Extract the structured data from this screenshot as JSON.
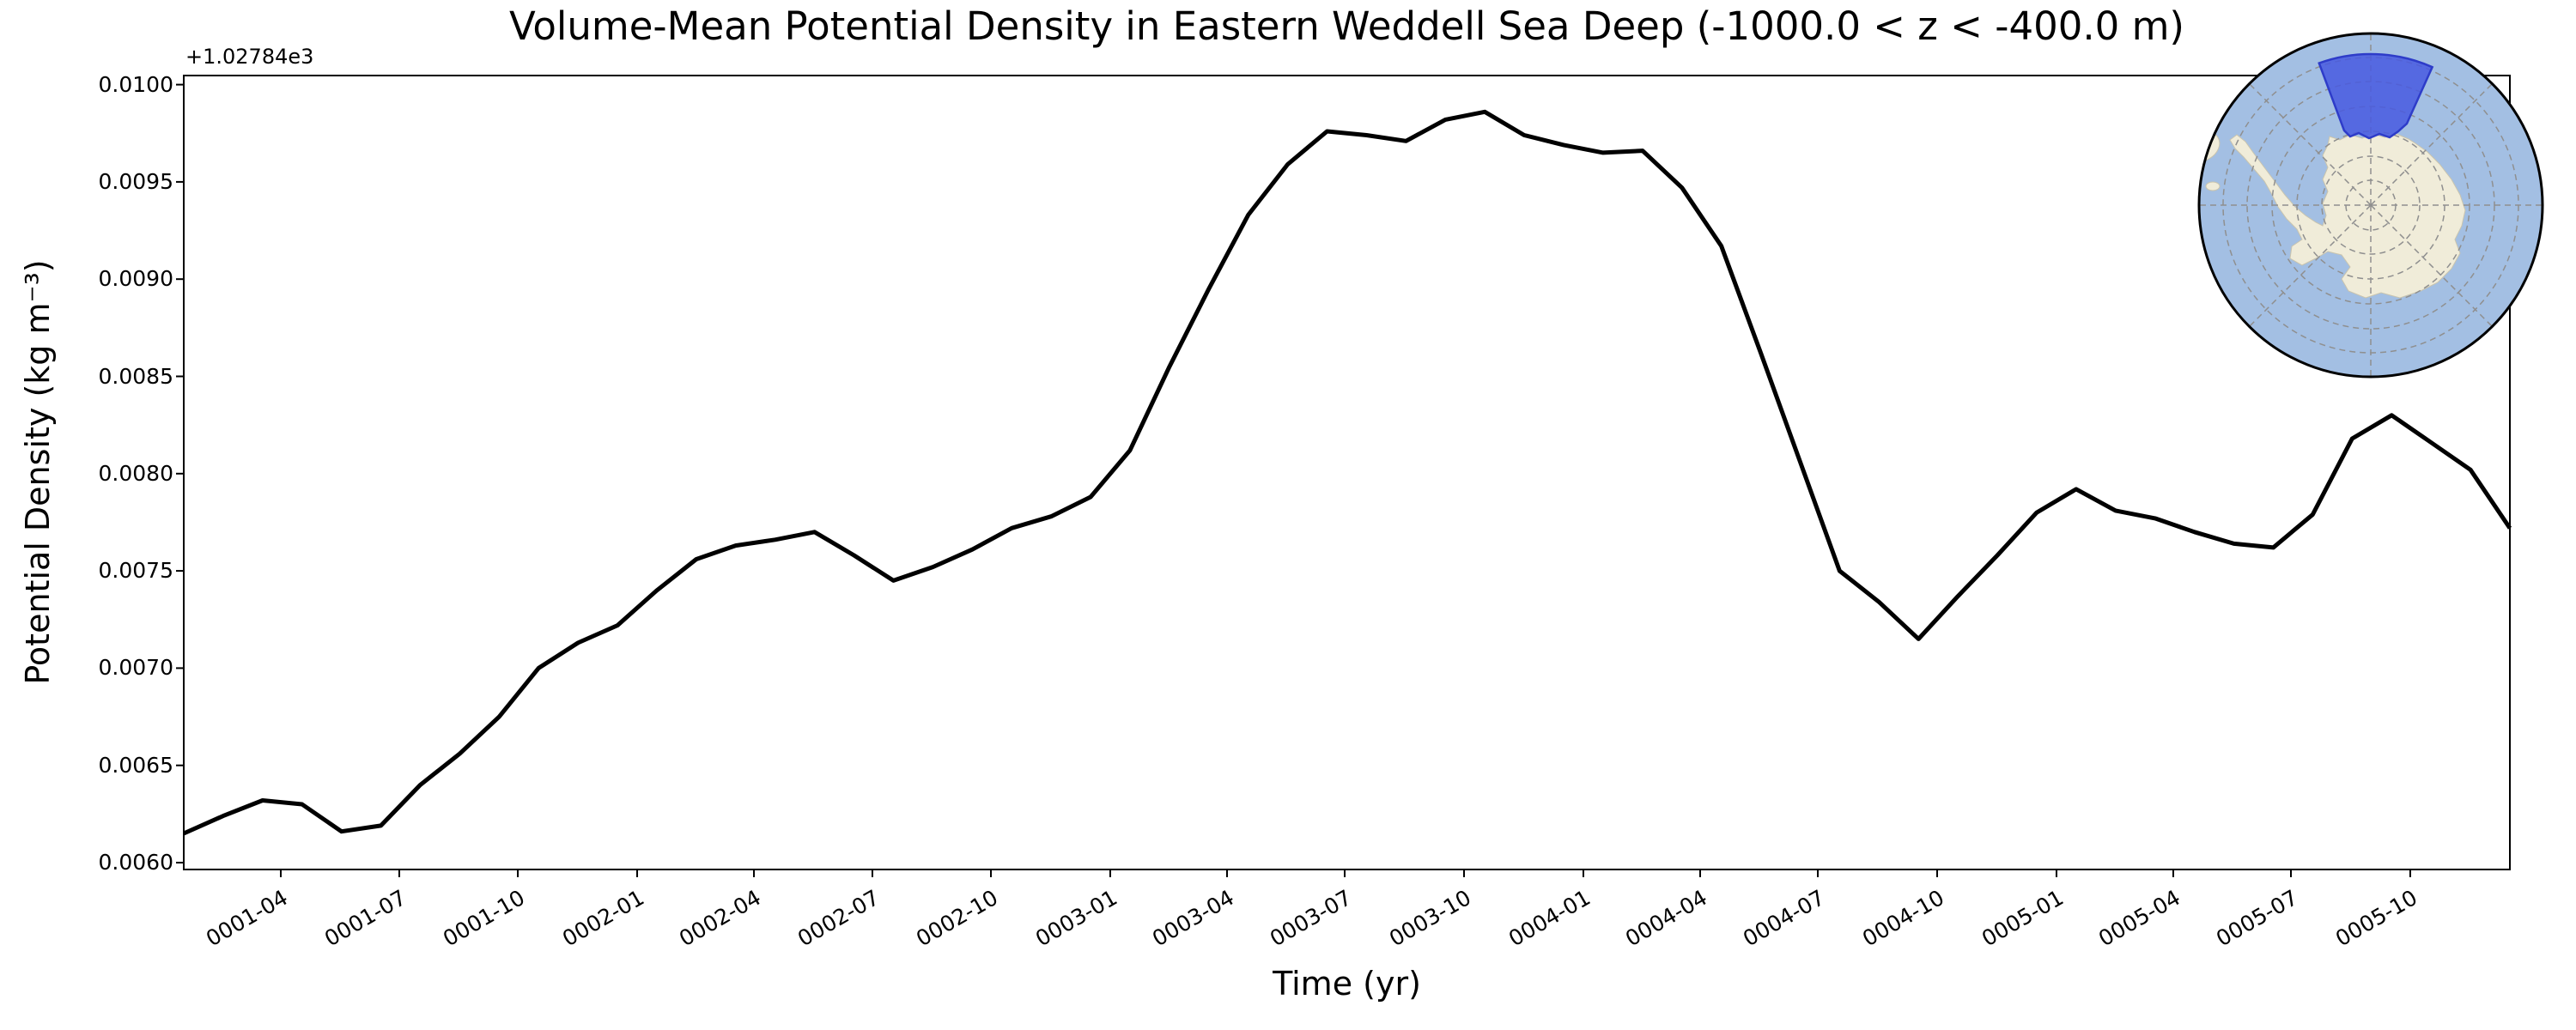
{
  "chart_data": {
    "type": "line",
    "title": "Volume-Mean Potential Density in Eastern Weddell Sea Deep (-1000.0 < z < -400.0 m)",
    "xlabel": "Time (yr)",
    "ylabel": "Potential Density (kg m⁻³)",
    "y_axis_offset_label": "+1.02784e3",
    "x_start": "0001-01",
    "x_end": "0005-12",
    "x_frequency": "monthly",
    "n_points": 60,
    "values": [
      0.00615,
      0.00624,
      0.00632,
      0.0063,
      0.00616,
      0.00619,
      0.0064,
      0.00656,
      0.00675,
      0.007,
      0.00713,
      0.00722,
      0.0074,
      0.00756,
      0.00763,
      0.00766,
      0.0077,
      0.00758,
      0.00745,
      0.00752,
      0.00761,
      0.00772,
      0.00778,
      0.00788,
      0.00812,
      0.00855,
      0.00895,
      0.00933,
      0.00959,
      0.00976,
      0.00974,
      0.00971,
      0.00982,
      0.00986,
      0.00974,
      0.00969,
      0.00965,
      0.00966,
      0.00947,
      0.00917,
      0.00862,
      0.00806,
      0.0075,
      0.00734,
      0.00715,
      0.00737,
      0.00758,
      0.0078,
      0.00792,
      0.00781,
      0.00777,
      0.0077,
      0.00764,
      0.00762,
      0.00779,
      0.00818,
      0.0083,
      0.00816,
      0.00802,
      0.00772
    ],
    "ylim": [
      0.0059647,
      0.0100468
    ],
    "xlim_months": [
      0,
      59
    ],
    "yticks": [
      {
        "label": "0.0100",
        "value": 0.01
      },
      {
        "label": "0.0095",
        "value": 0.0095
      },
      {
        "label": "0.0090",
        "value": 0.009
      },
      {
        "label": "0.0085",
        "value": 0.0085
      },
      {
        "label": "0.0080",
        "value": 0.008
      },
      {
        "label": "0.0075",
        "value": 0.0075
      },
      {
        "label": "0.0070",
        "value": 0.007
      },
      {
        "label": "0.0065",
        "value": 0.0065
      },
      {
        "label": "0.0060",
        "value": 0.006
      }
    ],
    "xticks": [
      {
        "label": "0001-04",
        "pos": 2.461
      },
      {
        "label": "0001-07",
        "pos": 5.467
      },
      {
        "label": "0001-10",
        "pos": 8.473
      },
      {
        "label": "0002-01",
        "pos": 11.5
      },
      {
        "label": "0002-04",
        "pos": 14.462
      },
      {
        "label": "0002-07",
        "pos": 17.467
      },
      {
        "label": "0002-10",
        "pos": 20.473
      },
      {
        "label": "0003-01",
        "pos": 23.5
      },
      {
        "label": "0003-04",
        "pos": 26.462
      },
      {
        "label": "0003-07",
        "pos": 29.446
      },
      {
        "label": "0003-10",
        "pos": 32.473
      },
      {
        "label": "0004-01",
        "pos": 35.5
      },
      {
        "label": "0004-04",
        "pos": 38.462
      },
      {
        "label": "0004-07",
        "pos": 41.446
      },
      {
        "label": "0004-10",
        "pos": 44.473
      },
      {
        "label": "0005-01",
        "pos": 47.5
      },
      {
        "label": "0005-04",
        "pos": 50.462
      },
      {
        "label": "0005-07",
        "pos": 53.446
      },
      {
        "label": "0005-10",
        "pos": 56.473
      }
    ],
    "line_color": "#000000",
    "axis_color": "#000000",
    "background": "#ffffff",
    "grid": false,
    "legend": null
  },
  "inset_map": {
    "projection": "south-polar",
    "ocean_color": "#a3bfe3",
    "land_color": "#f0ecd9",
    "graticule_color": "#8f8f8f",
    "border_color": "#000000",
    "region_fill": "#4859e0",
    "region_edge": "#2e3cc9"
  }
}
